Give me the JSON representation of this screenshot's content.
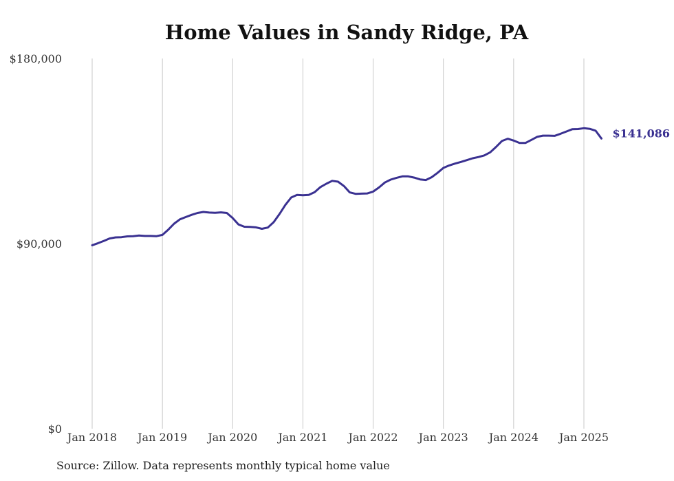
{
  "title": "Home Values in Sandy Ridge, PA",
  "source": "Source: Zillow. Data represents monthly typical home value",
  "chart_data": {
    "type": "line",
    "title": "Home Values in Sandy Ridge, PA",
    "xlabel": "",
    "ylabel": "",
    "ylim": [
      0,
      180000
    ],
    "y_ticks": [
      "$0",
      "$90,000",
      "$180,000"
    ],
    "y_tick_values": [
      0,
      90000,
      180000
    ],
    "x_ticks": [
      "Jan 2018",
      "Jan 2019",
      "Jan 2020",
      "Jan 2021",
      "Jan 2022",
      "Jan 2023",
      "Jan 2024",
      "Jan 2025"
    ],
    "x_tick_dates": [
      "2018-01",
      "2019-01",
      "2020-01",
      "2021-01",
      "2022-01",
      "2023-01",
      "2024-01",
      "2025-01"
    ],
    "grid": "vertical at x ticks",
    "line_color": "#3a3191",
    "end_label": "$141,086",
    "series": [
      {
        "x": [
          "2018-01",
          "2018-02",
          "2018-03",
          "2018-04",
          "2018-05",
          "2018-06",
          "2018-07",
          "2018-08",
          "2018-09",
          "2018-10",
          "2018-11",
          "2018-12",
          "2019-01",
          "2019-02",
          "2019-03",
          "2019-04",
          "2019-05",
          "2019-06",
          "2019-07",
          "2019-08",
          "2019-09",
          "2019-10",
          "2019-11",
          "2019-12",
          "2020-01",
          "2020-02",
          "2020-03",
          "2020-04",
          "2020-05",
          "2020-06",
          "2020-07",
          "2020-08",
          "2020-09",
          "2020-10",
          "2020-11",
          "2020-12",
          "2021-01",
          "2021-02",
          "2021-03",
          "2021-04",
          "2021-05",
          "2021-06",
          "2021-07",
          "2021-08",
          "2021-09",
          "2021-10",
          "2021-11",
          "2021-12",
          "2022-01",
          "2022-02",
          "2022-03",
          "2022-04",
          "2022-05",
          "2022-06",
          "2022-07",
          "2022-08",
          "2022-09",
          "2022-10",
          "2022-11",
          "2022-12",
          "2023-01",
          "2023-02",
          "2023-03",
          "2023-04",
          "2023-05",
          "2023-06",
          "2023-07",
          "2023-08",
          "2023-09",
          "2023-10",
          "2023-11",
          "2023-12",
          "2024-01",
          "2024-02",
          "2024-03",
          "2024-04",
          "2024-05",
          "2024-06",
          "2024-07",
          "2024-08",
          "2024-09",
          "2024-10",
          "2024-11",
          "2024-12",
          "2025-01",
          "2025-02",
          "2025-03",
          "2025-04"
        ],
        "values": [
          89200,
          90200,
          91300,
          92500,
          93000,
          93100,
          93500,
          93600,
          93900,
          93700,
          93700,
          93600,
          94200,
          96800,
          99700,
          101800,
          102900,
          104000,
          104900,
          105400,
          105100,
          105000,
          105200,
          104900,
          102400,
          99300,
          98200,
          98100,
          97900,
          97200,
          97800,
          100400,
          104400,
          108800,
          112400,
          113700,
          113500,
          113700,
          115000,
          117500,
          119100,
          120500,
          120100,
          118000,
          114900,
          114200,
          114300,
          114400,
          115300,
          117300,
          119700,
          121100,
          122000,
          122700,
          122700,
          122100,
          121200,
          120900,
          122300,
          124400,
          126800,
          128000,
          128900,
          129700,
          130600,
          131500,
          132100,
          132900,
          134400,
          137000,
          139900,
          141000,
          140100,
          138900,
          138900,
          140400,
          141900,
          142500,
          142500,
          142400,
          143400,
          144500,
          145600,
          145700,
          146100,
          145800,
          144900,
          141086
        ]
      }
    ]
  }
}
